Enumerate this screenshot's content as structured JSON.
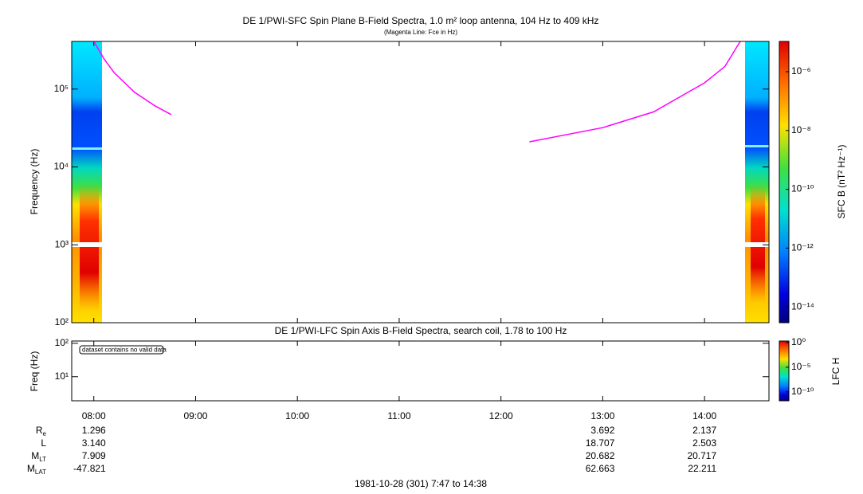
{
  "chart_data": [
    {
      "type": "spectrogram",
      "title": "DE 1/PWI-SFC  Spin Plane B-Field Spectra, 1.0 m² loop antenna, 104 Hz to 409 kHz",
      "subtitle": "(Magenta Line: Fce in Hz)",
      "y_label": "Frequency (Hz)",
      "log_y": true,
      "xlim": [
        7.783,
        14.633
      ],
      "ylim": [
        100,
        409000
      ],
      "yticks": [
        {
          "value": 100,
          "label": "10²"
        },
        {
          "value": 1000,
          "label": "10³"
        },
        {
          "value": 10000,
          "label": "10⁴"
        },
        {
          "value": 100000,
          "label": "10⁵"
        }
      ],
      "series": [
        {
          "name": "Fce",
          "color": "#ff00ff",
          "x": [
            8.0,
            8.1,
            8.2,
            8.4,
            8.6,
            8.76,
            null,
            12.28,
            13.0,
            13.5,
            14.0,
            14.2,
            14.35
          ],
          "values": [
            409000,
            245000,
            162000,
            91000,
            61000,
            47000,
            null,
            21000,
            32000,
            51000,
            120000,
            195000,
            409000
          ]
        }
      ],
      "colorbar": {
        "label": "SFC B (nT² Hz⁻¹)",
        "log": true,
        "lim": [
          2.9e-15,
          1.07e-05
        ],
        "ticks": [
          {
            "value": 1e-06,
            "label": "10⁻⁶"
          },
          {
            "value": 1e-08,
            "label": "10⁻⁸"
          },
          {
            "value": 1e-10,
            "label": "10⁻¹⁰"
          },
          {
            "value": 1e-12,
            "label": "10⁻¹²"
          },
          {
            "value": 1e-14,
            "label": "10⁻¹⁴"
          }
        ]
      }
    },
    {
      "type": "spectrogram",
      "title": "DE 1/PWI-LFC  Spin Axis B-Field Spectra, search coil, 1.78 to 100 Hz",
      "y_label": "Freq (Hz)",
      "annotation": "dataset contains no valid data",
      "log_y": true,
      "xlim": [
        7.783,
        14.633
      ],
      "ylim": [
        1.9,
        117
      ],
      "xticks": [
        {
          "value": 8,
          "label": "08:00"
        },
        {
          "value": 9,
          "label": "09:00"
        },
        {
          "value": 10,
          "label": "10:00"
        },
        {
          "value": 11,
          "label": "11:00"
        },
        {
          "value": 12,
          "label": "12:00"
        },
        {
          "value": 13,
          "label": "13:00"
        },
        {
          "value": 14,
          "label": "14:00"
        }
      ],
      "yticks": [
        {
          "value": 10,
          "label": "10¹"
        },
        {
          "value": 100,
          "label": "10²"
        }
      ],
      "colorbar": {
        "label": "LFC H",
        "log": true,
        "lim": [
          1.6e-12,
          2
        ],
        "ticks": [
          {
            "value": 1,
            "label": "10⁰"
          },
          {
            "value": 1e-05,
            "label": "10⁻⁵"
          },
          {
            "value": 1e-10,
            "label": "10⁻¹⁰"
          }
        ]
      }
    }
  ],
  "ephemeris": {
    "rows": [
      {
        "label": "R",
        "sub": "e",
        "values": [
          "1.296",
          null,
          null,
          null,
          null,
          "3.692",
          "2.137"
        ]
      },
      {
        "label": "L",
        "values": [
          "3.140",
          null,
          null,
          null,
          null,
          "18.707",
          "2.503"
        ]
      },
      {
        "label": "M",
        "sub": "LT",
        "values": [
          "7.909",
          null,
          null,
          null,
          null,
          "20.682",
          "20.717"
        ]
      },
      {
        "label": "M",
        "sub": "LAT",
        "values": [
          "-47.821",
          null,
          null,
          null,
          null,
          "62.663",
          "22.211"
        ]
      }
    ]
  },
  "footer": "1981-10-28 (301) 7:47 to 14:38"
}
